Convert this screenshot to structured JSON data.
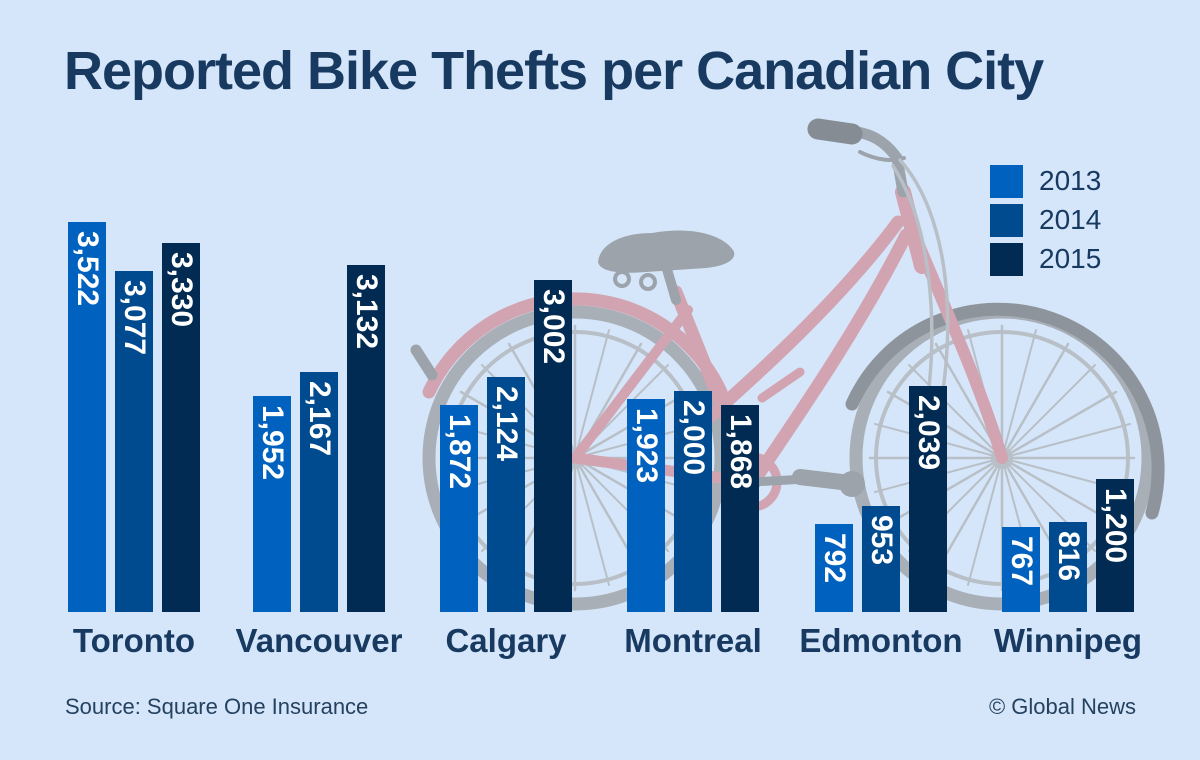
{
  "header": {
    "title": "Reported Bike Thefts per Canadian City"
  },
  "legend": {
    "items": [
      {
        "label": "2013",
        "color": "#0061BE"
      },
      {
        "label": "2014",
        "color": "#004A8F"
      },
      {
        "label": "2015",
        "color": "#012B52"
      }
    ]
  },
  "chart_data": {
    "type": "bar",
    "title": "Reported Bike Thefts per Canadian City",
    "categories": [
      "Toronto",
      "Vancouver",
      "Calgary",
      "Montreal",
      "Edmonton",
      "Winnipeg"
    ],
    "series": [
      {
        "name": "2013",
        "color": "#0061BE",
        "values": [
          3522,
          1952,
          1872,
          1923,
          792,
          767
        ]
      },
      {
        "name": "2014",
        "color": "#004A8F",
        "values": [
          3077,
          2167,
          2124,
          2000,
          953,
          816
        ]
      },
      {
        "name": "2015",
        "color": "#012B52",
        "values": [
          3330,
          3132,
          3002,
          1868,
          2039,
          1200
        ]
      }
    ],
    "ylim": [
      0,
      3522
    ],
    "grid": false,
    "axis_shown": false,
    "value_labels_on_bars": true,
    "value_label_orientation": "vertical",
    "legend_position": "top-right"
  },
  "footer": {
    "source": "Source: Square One Insurance",
    "credit": "© Global News"
  },
  "decoration": {
    "bike_illustration": "city-step-through-bicycle-silhouette"
  },
  "colors": {
    "bg": "#D5E6FA",
    "text": "#183A61",
    "text-soft": "#24425F",
    "pink": "#D2A4B1",
    "gray": "#9CA3AB",
    "grip": "#858C94",
    "tire": "#A8AFB7",
    "spoke": "#B8BFC6",
    "fender": "#8D949C"
  }
}
